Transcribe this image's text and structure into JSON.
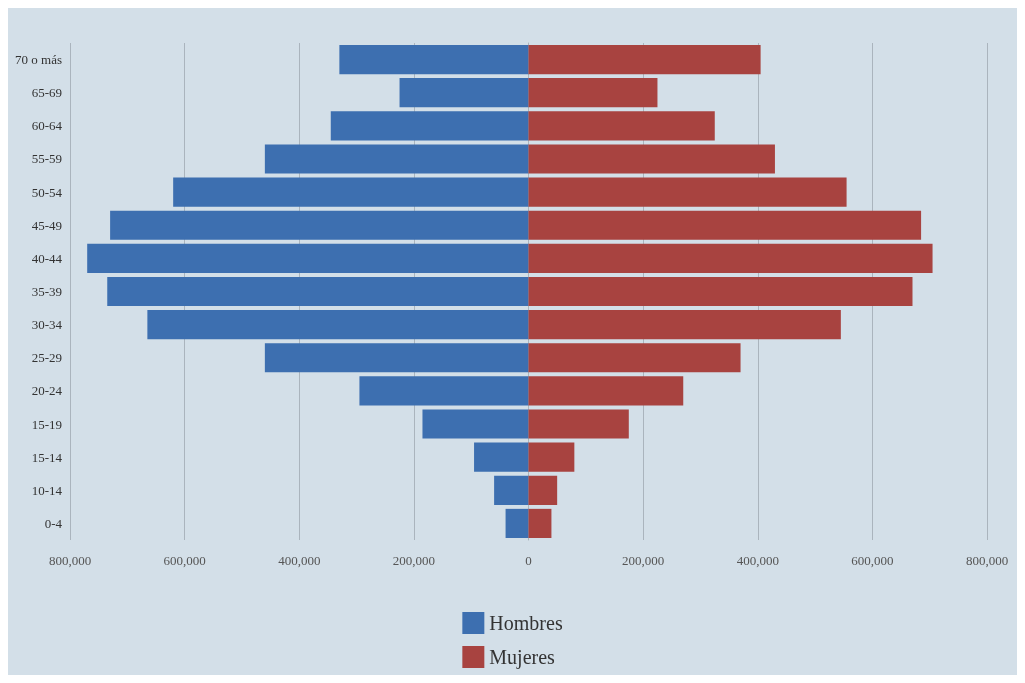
{
  "chart_data": {
    "type": "bar",
    "orientation": "horizontal",
    "categories": [
      "70 o más",
      "65-69",
      "60-64",
      "55-59",
      "50-54",
      "45-49",
      "40-44",
      "35-39",
      "30-34",
      "25-29",
      "20-24",
      "15-19",
      "15-14",
      "10-14",
      "0-4"
    ],
    "series": [
      {
        "name": "Hombres",
        "color": "#3d6fb0",
        "values": [
          -330000,
          -225000,
          -345000,
          -460000,
          -620000,
          -730000,
          -770000,
          -735000,
          -665000,
          -460000,
          -295000,
          -185000,
          -95000,
          -60000,
          -40000
        ]
      },
      {
        "name": "Mujeres",
        "color": "#a84340",
        "values": [
          405000,
          225000,
          325000,
          430000,
          555000,
          685000,
          705000,
          670000,
          545000,
          370000,
          270000,
          175000,
          80000,
          50000,
          40000
        ]
      }
    ],
    "xlim": [
      -800000,
      800000
    ],
    "xticks": [
      {
        "value": -800000,
        "label": "800,000"
      },
      {
        "value": -600000,
        "label": "600,000"
      },
      {
        "value": -400000,
        "label": "400,000"
      },
      {
        "value": -200000,
        "label": "200,000"
      },
      0,
      {
        "value": 200000,
        "label": "200,000"
      },
      {
        "value": 400000,
        "label": "400,000"
      },
      {
        "value": 600000,
        "label": "600,000"
      },
      {
        "value": 800000,
        "label": "800,000"
      }
    ],
    "grid": "x",
    "legend": "bottom",
    "stacked": true
  }
}
